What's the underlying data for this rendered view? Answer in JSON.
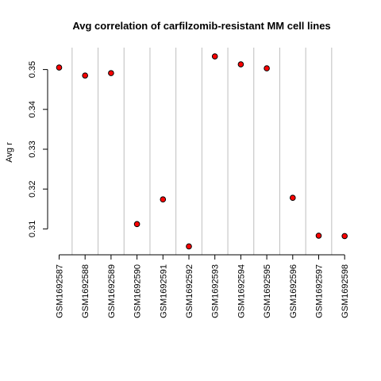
{
  "chart_data": {
    "type": "scatter",
    "title": "Avg correlation of carfilzomib-resistant MM cell lines",
    "xlabel": "",
    "ylabel": "Avg r",
    "categories": [
      "GSM1692587",
      "GSM1692588",
      "GSM1692589",
      "GSM1692590",
      "GSM1692591",
      "GSM1692592",
      "GSM1692593",
      "GSM1692594",
      "GSM1692595",
      "GSM1692596",
      "GSM1692597",
      "GSM1692598"
    ],
    "values": [
      0.3505,
      0.3485,
      0.3491,
      0.3112,
      0.3174,
      0.3056,
      0.3533,
      0.3513,
      0.3503,
      0.3178,
      0.3083,
      0.3082
    ],
    "yticks": [
      0.31,
      0.32,
      0.33,
      0.34,
      0.35
    ],
    "ytick_labels": [
      "0.31",
      "0.32",
      "0.33",
      "0.34",
      "0.35"
    ],
    "ylim": [
      0.3035,
      0.3555
    ],
    "grid": "vertical separators between categories",
    "point_color": "#ff0000",
    "point_outline": "#000000",
    "grid_color": "#bebebe"
  }
}
